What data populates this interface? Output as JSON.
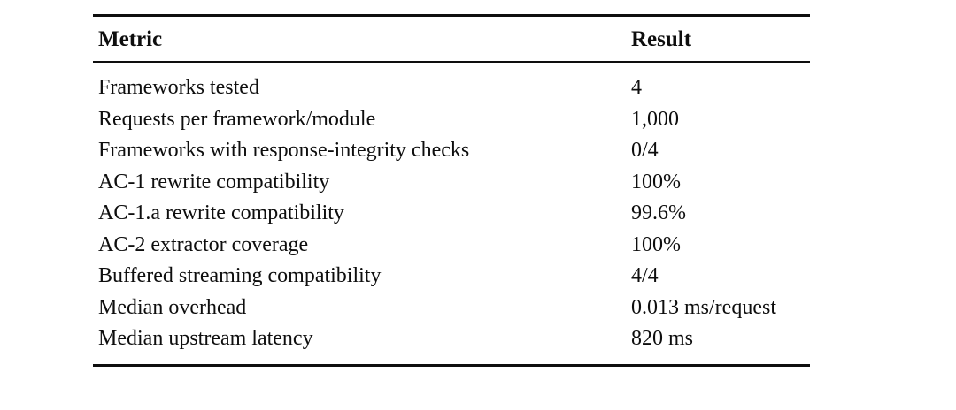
{
  "table": {
    "columns": [
      "Metric",
      "Result"
    ],
    "rows": [
      [
        "Frameworks tested",
        "4"
      ],
      [
        "Requests per framework/module",
        "1,000"
      ],
      [
        "Frameworks with response-integrity checks",
        "0/4"
      ],
      [
        "AC-1 rewrite compatibility",
        "100%"
      ],
      [
        "AC-1.a rewrite compatibility",
        "99.6%"
      ],
      [
        "AC-2 extractor coverage",
        "100%"
      ],
      [
        "Buffered streaming compatibility",
        "4/4"
      ],
      [
        "Median overhead",
        "0.013 ms/request"
      ],
      [
        "Median upstream latency",
        "820 ms"
      ]
    ]
  },
  "colors": {
    "text": "#0e0e0e",
    "background": "#ffffff"
  }
}
